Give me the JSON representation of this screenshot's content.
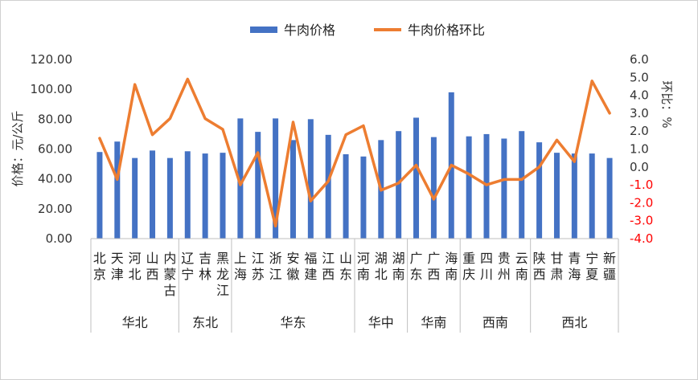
{
  "chart_data": {
    "type": "bar",
    "categories": [
      "北京",
      "天津",
      "河北",
      "山西",
      "内蒙古",
      "辽宁",
      "吉林",
      "黑龙江",
      "上海",
      "江苏",
      "浙江",
      "安徽",
      "福建",
      "江西",
      "山东",
      "河南",
      "湖北",
      "湖南",
      "广东",
      "广西",
      "海南",
      "重庆",
      "四川",
      "贵州",
      "云南",
      "陕西",
      "甘肃",
      "青海",
      "宁夏",
      "新疆"
    ],
    "regions": [
      {
        "name": "华北",
        "count": 5
      },
      {
        "name": "东北",
        "count": 3
      },
      {
        "name": "华东",
        "count": 7
      },
      {
        "name": "华中",
        "count": 3
      },
      {
        "name": "华南",
        "count": 3
      },
      {
        "name": "西南",
        "count": 4
      },
      {
        "name": "西北",
        "count": 5
      }
    ],
    "series": [
      {
        "name": "牛肉价格",
        "type": "bar",
        "axis": "left",
        "color": "#4472C4",
        "values": [
          58.0,
          65.0,
          54.0,
          59.0,
          54.0,
          58.5,
          57.0,
          57.5,
          80.5,
          71.5,
          80.5,
          66.0,
          80.0,
          69.5,
          56.5,
          55.0,
          66.0,
          72.0,
          81.0,
          68.0,
          98.0,
          68.5,
          70.0,
          67.0,
          72.0,
          64.5,
          57.5,
          57.0,
          57.0,
          54.0
        ]
      },
      {
        "name": "牛肉价格环比",
        "type": "line",
        "axis": "right",
        "color": "#ED7D31",
        "values": [
          1.6,
          -0.7,
          4.6,
          1.8,
          2.7,
          4.9,
          2.7,
          2.1,
          -1.0,
          0.8,
          -3.3,
          2.5,
          -1.9,
          -0.8,
          1.8,
          2.3,
          -1.3,
          -0.9,
          0.1,
          -1.8,
          0.1,
          -0.4,
          -1.0,
          -0.7,
          -0.7,
          0.0,
          1.5,
          0.3,
          4.8,
          3.0
        ]
      }
    ],
    "left_axis": {
      "label": "价格：元/公斤",
      "ylim": [
        0,
        120
      ],
      "ticks": [
        "0.00",
        "20.00",
        "40.00",
        "60.00",
        "80.00",
        "100.00",
        "120.00"
      ]
    },
    "right_axis": {
      "label": "环比：%",
      "ylim": [
        -4,
        6
      ],
      "ticks": [
        "-4.0",
        "-3.0",
        "-2.0",
        "-1.0",
        "0.0",
        "1.0",
        "2.0",
        "3.0",
        "4.0",
        "5.0",
        "6.0"
      ],
      "negative_color": "#FF0000",
      "positive_color": "#333333"
    },
    "legend_position": "top-center",
    "grid": false
  }
}
